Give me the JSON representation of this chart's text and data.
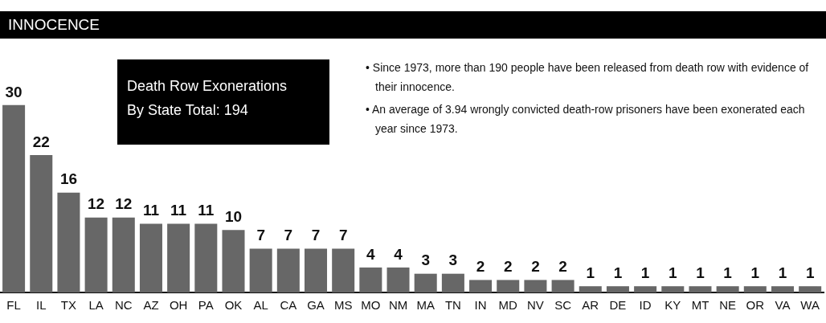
{
  "chart_data": {
    "type": "bar",
    "title": "INNOCENCE",
    "subtitle": "Death Row Exonerations By State Total: 194",
    "categories": [
      "FL",
      "IL",
      "TX",
      "LA",
      "NC",
      "AZ",
      "OH",
      "PA",
      "OK",
      "AL",
      "CA",
      "GA",
      "MS",
      "MO",
      "NM",
      "MA",
      "TN",
      "IN",
      "MD",
      "NV",
      "SC",
      "AR",
      "DE",
      "ID",
      "KY",
      "MT",
      "NE",
      "OR",
      "VA",
      "WA"
    ],
    "values": [
      30,
      22,
      16,
      12,
      12,
      11,
      11,
      11,
      10,
      7,
      7,
      7,
      7,
      4,
      4,
      3,
      3,
      2,
      2,
      2,
      2,
      1,
      1,
      1,
      1,
      1,
      1,
      1,
      1,
      1
    ],
    "color": "#676767",
    "data_labels": true,
    "annotations": [
      "• Since 1973, more than 190 people have been released from death row with evidence of their innocence.",
      "• An average of 3.94 wrongly convicted death-row prisoners have been exonerated each year since 1973."
    ]
  }
}
